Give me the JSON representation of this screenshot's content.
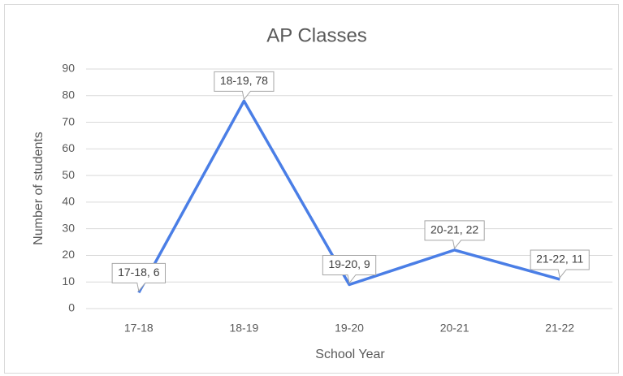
{
  "chart_data": {
    "type": "line",
    "title": "AP Classes",
    "x_label": "School Year",
    "y_label": "Number of students",
    "categories": [
      "17-18",
      "18-19",
      "19-20",
      "20-21",
      "21-22"
    ],
    "series": [
      {
        "name": "AP Classes",
        "color": "#4a7ee6",
        "values": [
          6,
          78,
          9,
          22,
          11
        ],
        "value_labels": [
          "17-18, 6",
          "18-19, 78",
          "19-20, 9",
          "20-21, 22",
          "21-22, 11"
        ]
      }
    ],
    "ylim": [
      0,
      90
    ],
    "yticks": [
      0,
      10,
      20,
      30,
      40,
      50,
      60,
      70,
      80,
      90
    ],
    "grid": true
  }
}
